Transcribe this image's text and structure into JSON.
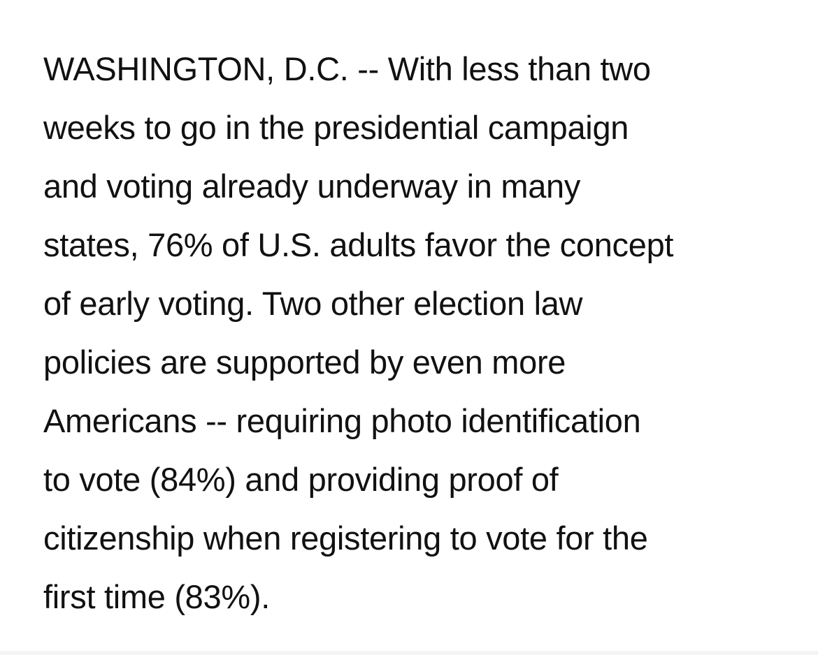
{
  "article": {
    "paragraph_lines": [
      "WASHINGTON, D.C. -- With less than two",
      "weeks to go in the presidential campaign",
      "and voting already underway in many",
      "states, 76% of U.S. adults favor the concept",
      "of early voting. Two other election law",
      "policies are supported by even more",
      "Americans -- requiring photo identification",
      "to vote (84%) and providing proof of",
      "citizenship when registering to vote for the",
      "first time (83%)."
    ]
  }
}
